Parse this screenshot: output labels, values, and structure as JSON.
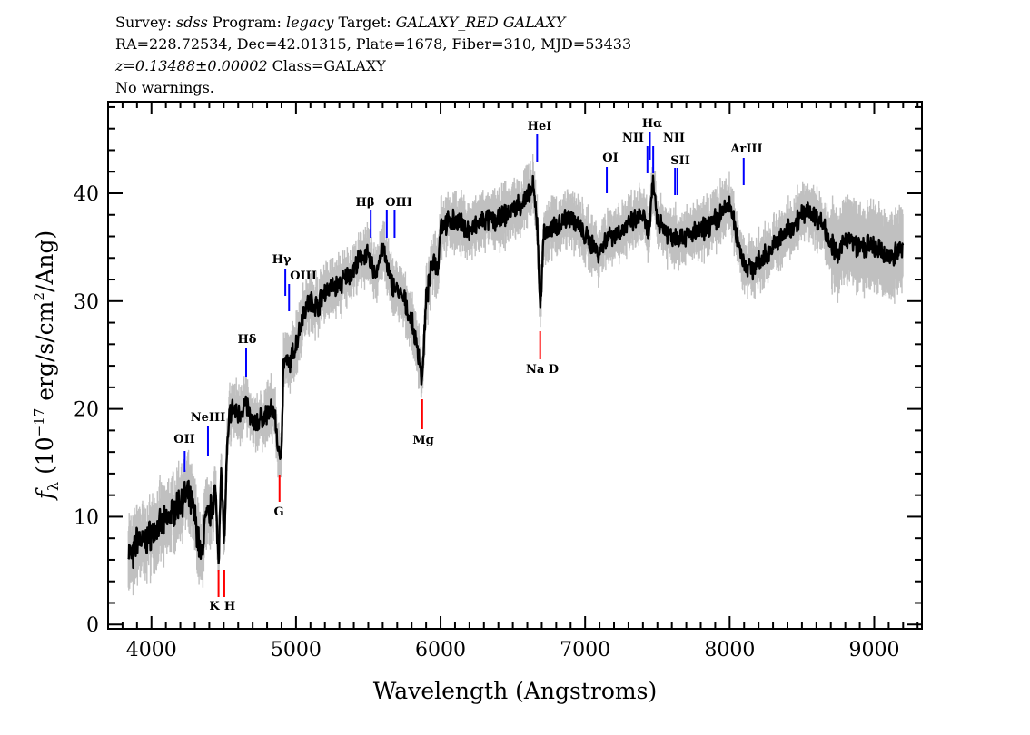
{
  "header": {
    "line1": [
      {
        "text": "Survey: ",
        "italic": false
      },
      {
        "text": "sdss",
        "italic": true
      },
      {
        "text": " Program: ",
        "italic": false
      },
      {
        "text": "legacy",
        "italic": true
      },
      {
        "text": " Target: ",
        "italic": false
      },
      {
        "text": "GALAXY_RED GALAXY",
        "italic": true
      }
    ],
    "line2": "RA=228.72534, Dec=42.01315, Plate=1678, Fiber=310, MJD=53433",
    "line3": [
      {
        "text": "z=0.13488±0.00002",
        "italic": true
      },
      {
        "text": " Class=GALAXY",
        "italic": false
      }
    ],
    "line4": "No warnings."
  },
  "chart_data": {
    "type": "line",
    "xlabel": "Wavelength (Angstroms)",
    "ylabel": "f_λ (10^-17 erg/s/cm^2/Ang)",
    "xlim": [
      3700,
      9330
    ],
    "ylim": [
      -0.4,
      48.5
    ],
    "xticks": [
      4000,
      5000,
      6000,
      7000,
      8000,
      9000
    ],
    "yticks": [
      0,
      10,
      20,
      30,
      40
    ],
    "grid": false,
    "colors": {
      "flux": "#000000",
      "error": "#c0c0c0",
      "emission": "#0000ff",
      "absorption": "#ff0000"
    },
    "spectrum": [
      [
        3840,
        7
      ],
      [
        3870,
        6
      ],
      [
        3900,
        8
      ],
      [
        3950,
        7.5
      ],
      [
        4000,
        8.5
      ],
      [
        4050,
        9
      ],
      [
        4100,
        9.5
      ],
      [
        4150,
        10.5
      ],
      [
        4200,
        11.5
      ],
      [
        4250,
        12
      ],
      [
        4280,
        11
      ],
      [
        4300,
        10
      ],
      [
        4345,
        6
      ],
      [
        4370,
        9.5
      ],
      [
        4400,
        10
      ],
      [
        4440,
        12.5
      ],
      [
        4464,
        6
      ],
      [
        4480,
        14.5
      ],
      [
        4504,
        7.4
      ],
      [
        4520,
        15
      ],
      [
        4540,
        19.5
      ],
      [
        4560,
        20
      ],
      [
        4600,
        19.5
      ],
      [
        4655,
        20.5
      ],
      [
        4700,
        18.5
      ],
      [
        4750,
        19
      ],
      [
        4800,
        19.5
      ],
      [
        4850,
        20
      ],
      [
        4886,
        15
      ],
      [
        4900,
        17
      ],
      [
        4915,
        24.5
      ],
      [
        4950,
        24
      ],
      [
        5000,
        26
      ],
      [
        5050,
        29
      ],
      [
        5100,
        30
      ],
      [
        5150,
        29.5
      ],
      [
        5200,
        31
      ],
      [
        5300,
        31.5
      ],
      [
        5400,
        33
      ],
      [
        5480,
        34.5
      ],
      [
        5550,
        32.5
      ],
      [
        5600,
        35
      ],
      [
        5650,
        32
      ],
      [
        5700,
        31
      ],
      [
        5750,
        30
      ],
      [
        5800,
        28
      ],
      [
        5850,
        25
      ],
      [
        5873,
        22.5
      ],
      [
        5900,
        30
      ],
      [
        5950,
        34
      ],
      [
        5980,
        33
      ],
      [
        6000,
        37
      ],
      [
        6100,
        37.5
      ],
      [
        6200,
        36.5
      ],
      [
        6300,
        37.5
      ],
      [
        6400,
        37.5
      ],
      [
        6500,
        38.5
      ],
      [
        6600,
        39.5
      ],
      [
        6640,
        40.5
      ],
      [
        6670,
        37
      ],
      [
        6690,
        29
      ],
      [
        6710,
        36
      ],
      [
        6800,
        37
      ],
      [
        6900,
        38
      ],
      [
        7000,
        36
      ],
      [
        7100,
        34.5
      ],
      [
        7150,
        36
      ],
      [
        7250,
        36.5
      ],
      [
        7350,
        37.5
      ],
      [
        7400,
        38
      ],
      [
        7440,
        36
      ],
      [
        7471,
        41
      ],
      [
        7500,
        37.5
      ],
      [
        7600,
        36
      ],
      [
        7700,
        36
      ],
      [
        7800,
        36.5
      ],
      [
        7900,
        37.5
      ],
      [
        8000,
        39
      ],
      [
        8050,
        36
      ],
      [
        8100,
        33.5
      ],
      [
        8150,
        33
      ],
      [
        8200,
        33.5
      ],
      [
        8300,
        35
      ],
      [
        8400,
        36.5
      ],
      [
        8500,
        38
      ],
      [
        8550,
        38.5
      ],
      [
        8650,
        37
      ],
      [
        8750,
        34
      ],
      [
        8800,
        36
      ],
      [
        8900,
        35
      ],
      [
        9000,
        35
      ],
      [
        9100,
        34
      ],
      [
        9200,
        35
      ]
    ],
    "lines": [
      {
        "label": "OII",
        "wave": 4230,
        "type": "emission",
        "side": "above"
      },
      {
        "label": "NeIII",
        "wave": 4391,
        "type": "emission",
        "side": "above"
      },
      {
        "label": "K",
        "wave": 4464,
        "type": "absorption",
        "side": "below"
      },
      {
        "label": "H",
        "wave": 4504,
        "type": "absorption",
        "side": "below"
      },
      {
        "label": "Hδ",
        "wave": 4655,
        "type": "emission",
        "side": "above"
      },
      {
        "label": "G",
        "wave": 4886,
        "type": "absorption",
        "side": "below"
      },
      {
        "label": "Hγ",
        "wave": 4926,
        "type": "emission",
        "side": "above"
      },
      {
        "label": "OIII",
        "wave": 4952,
        "type": "emission",
        "side": "above"
      },
      {
        "label": "Hβ",
        "wave": 5517,
        "type": "emission",
        "side": "above"
      },
      {
        "label": "OIII",
        "wave": 5628,
        "type": "emission",
        "side": "above"
      },
      {
        "label": "",
        "wave": 5682,
        "type": "emission",
        "side": "above"
      },
      {
        "label": "Mg",
        "wave": 5873,
        "type": "absorption",
        "side": "below"
      },
      {
        "label": "HeI",
        "wave": 6668,
        "type": "emission",
        "side": "above"
      },
      {
        "label": "Na D",
        "wave": 6689,
        "type": "absorption",
        "side": "below"
      },
      {
        "label": "OI",
        "wave": 7150,
        "type": "emission",
        "side": "above"
      },
      {
        "label": "NII",
        "wave": 7431,
        "type": "emission",
        "side": "above"
      },
      {
        "label": "Hα",
        "wave": 7448,
        "type": "emission",
        "side": "above"
      },
      {
        "label": "NII",
        "wave": 7471,
        "type": "emission",
        "side": "above"
      },
      {
        "label": "SII",
        "wave": 7622,
        "type": "emission",
        "side": "above"
      },
      {
        "label": "",
        "wave": 7639,
        "type": "emission",
        "side": "above"
      },
      {
        "label": "ArIII",
        "wave": 8097,
        "type": "emission",
        "side": "above"
      }
    ]
  }
}
